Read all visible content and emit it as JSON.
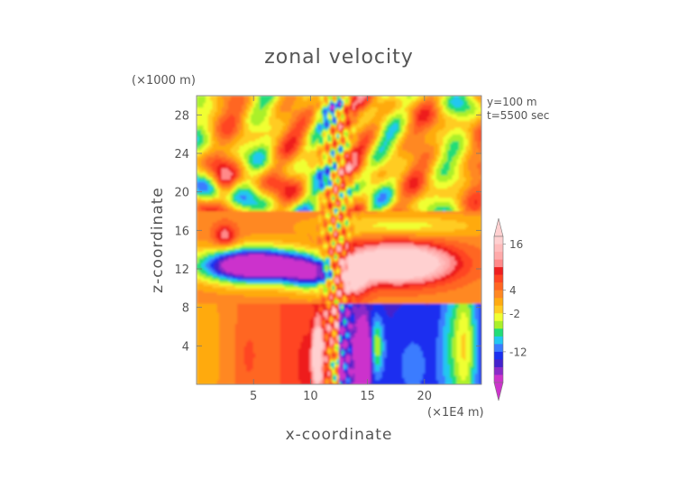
{
  "chart_data": {
    "type": "heatmap",
    "title": "zonal velocity",
    "xlabel": "x-coordinate",
    "ylabel": "z-coordinate",
    "x_unit": "(×1E4 m)",
    "y_unit": "(×1000 m)",
    "annotations": [
      "y=100 m",
      "t=5500 sec"
    ],
    "x_ticks": [
      5,
      10,
      15,
      20
    ],
    "y_ticks": [
      4,
      8,
      12,
      16,
      20,
      24,
      28
    ],
    "xlim": [
      0,
      25
    ],
    "ylim": [
      0,
      30
    ],
    "colorbar": {
      "labels": [
        16,
        4,
        -2,
        -12
      ],
      "levels": [
        -20,
        -16,
        -14,
        -12,
        -10,
        -8,
        -6,
        -4,
        -2,
        0,
        2,
        4,
        6,
        8,
        10,
        12,
        14,
        16,
        18
      ],
      "colors": [
        "#cc33cc",
        "#8a2bc8",
        "#4422cc",
        "#1a2ff0",
        "#3b7bff",
        "#22c7f0",
        "#22dd77",
        "#aaf02a",
        "#f0ff33",
        "#ffcc22",
        "#ffaa11",
        "#ff8822",
        "#ff6622",
        "#ff4422",
        "#ee1e1e",
        "#ff8a8a",
        "#ffaaaa",
        "#ffbcbc",
        "#ffd0d0"
      ],
      "extend": "both"
    }
  }
}
